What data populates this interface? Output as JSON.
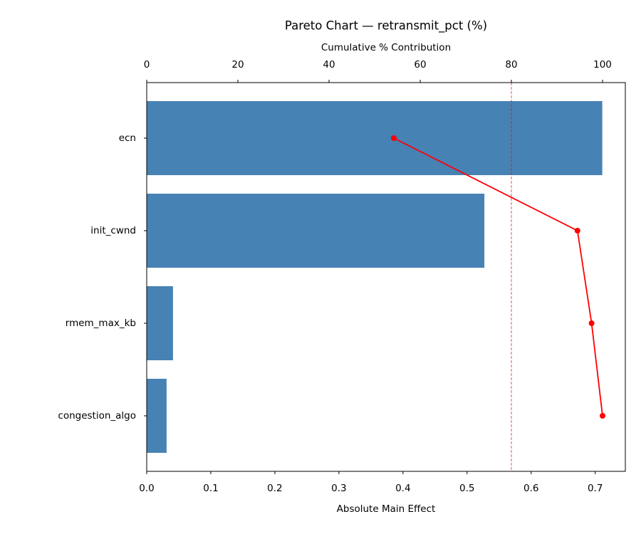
{
  "chart_data": {
    "type": "pareto",
    "orientation": "horizontal",
    "title": "Pareto Chart — retransmit_pct (%)",
    "xlabel": "Absolute Main Effect",
    "x2label": "Cumulative % Contribution",
    "categories": [
      "ecn",
      "init_cwnd",
      "rmem_max_kb",
      "congestion_algo"
    ],
    "values": [
      0.711,
      0.527,
      0.041,
      0.031
    ],
    "color": "#4682b4",
    "line": {
      "values": [
        54.2,
        94.5,
        97.6,
        100
      ],
      "color": "#ff0000",
      "axis": "x2"
    },
    "threshold": 80,
    "xlim": [
      0,
      0.747
    ],
    "xticks": [
      {
        "value": 0,
        "label": "0.0"
      },
      0.1,
      0.2,
      0.3,
      0.4,
      0.5,
      0.6,
      0.7
    ],
    "x2lim": [
      0,
      105
    ],
    "x2ticks": [
      0,
      20,
      40,
      60,
      80,
      100
    ]
  }
}
